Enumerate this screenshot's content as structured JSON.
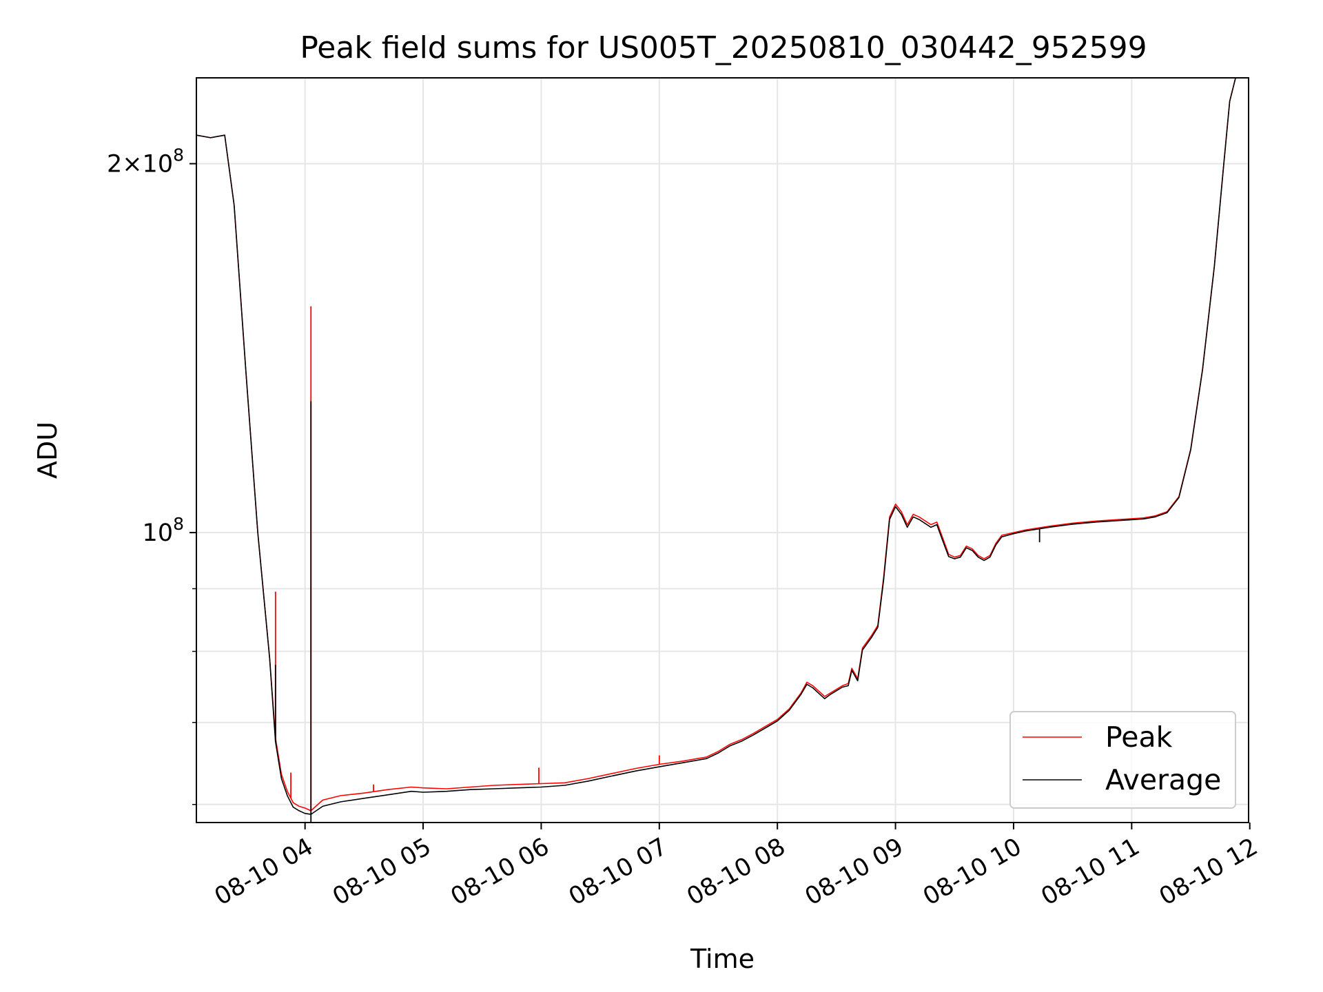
{
  "chart_data": {
    "type": "line",
    "title": "Peak field sums for US005T_20250810_030442_952599",
    "xlabel": "Time",
    "ylabel": "ADU",
    "x_range_hours": [
      3.08,
      11.99
    ],
    "y_scale": "log",
    "ylim": [
      58000000,
      235000000
    ],
    "grid": true,
    "legend_position": "bottom-right",
    "x_ticks": [
      {
        "value": 4,
        "label": "08-10 04"
      },
      {
        "value": 5,
        "label": "08-10 05"
      },
      {
        "value": 6,
        "label": "08-10 06"
      },
      {
        "value": 7,
        "label": "08-10 07"
      },
      {
        "value": 8,
        "label": "08-10 08"
      },
      {
        "value": 9,
        "label": "08-10 09"
      },
      {
        "value": 10,
        "label": "08-10 10"
      },
      {
        "value": 11,
        "label": "08-10 11"
      },
      {
        "value": 12,
        "label": "08-10 12"
      }
    ],
    "y_major_ticks": [
      {
        "value": 100000000,
        "label_base": "10",
        "label_exp": "8"
      },
      {
        "value": 200000000,
        "label_base": "2×10",
        "label_exp": "8"
      }
    ],
    "y_minor_ticks": [
      60000000,
      70000000,
      80000000,
      90000000
    ],
    "series": [
      {
        "name": "Peak",
        "color": "#ff0000",
        "points": [
          [
            3.08,
            211000000
          ],
          [
            3.2,
            210000000
          ],
          [
            3.32,
            211000000
          ],
          [
            3.4,
            185000000
          ],
          [
            3.5,
            135000000
          ],
          [
            3.6,
            100000000
          ],
          [
            3.7,
            79000000
          ],
          [
            3.75,
            68000000
          ],
          [
            3.8,
            63500000
          ],
          [
            3.85,
            61500000
          ],
          [
            3.9,
            60200000
          ],
          [
            3.95,
            59800000
          ],
          [
            4.0,
            59600000
          ],
          [
            4.05,
            59300000
          ],
          [
            4.15,
            60500000
          ],
          [
            4.3,
            61000000
          ],
          [
            4.5,
            61300000
          ],
          [
            4.7,
            61700000
          ],
          [
            4.9,
            62000000
          ],
          [
            5.0,
            61900000
          ],
          [
            5.2,
            61800000
          ],
          [
            5.4,
            62000000
          ],
          [
            5.6,
            62200000
          ],
          [
            5.8,
            62300000
          ],
          [
            6.0,
            62400000
          ],
          [
            6.2,
            62500000
          ],
          [
            6.4,
            63000000
          ],
          [
            6.6,
            63600000
          ],
          [
            6.8,
            64200000
          ],
          [
            7.0,
            64700000
          ],
          [
            7.2,
            65100000
          ],
          [
            7.4,
            65600000
          ],
          [
            7.5,
            66300000
          ],
          [
            7.6,
            67200000
          ],
          [
            7.7,
            67800000
          ],
          [
            7.8,
            68600000
          ],
          [
            7.9,
            69500000
          ],
          [
            8.0,
            70400000
          ],
          [
            8.1,
            71800000
          ],
          [
            8.2,
            74000000
          ],
          [
            8.25,
            75500000
          ],
          [
            8.3,
            75000000
          ],
          [
            8.4,
            73500000
          ],
          [
            8.45,
            74000000
          ],
          [
            8.55,
            75000000
          ],
          [
            8.6,
            75300000
          ],
          [
            8.63,
            77500000
          ],
          [
            8.68,
            76000000
          ],
          [
            8.72,
            80500000
          ],
          [
            8.8,
            82500000
          ],
          [
            8.85,
            84000000
          ],
          [
            8.9,
            92000000
          ],
          [
            8.95,
            103000000
          ],
          [
            9.0,
            105500000
          ],
          [
            9.05,
            104000000
          ],
          [
            9.1,
            101500000
          ],
          [
            9.15,
            103500000
          ],
          [
            9.2,
            103000000
          ],
          [
            9.3,
            101500000
          ],
          [
            9.35,
            102000000
          ],
          [
            9.4,
            99000000
          ],
          [
            9.45,
            96000000
          ],
          [
            9.5,
            95500000
          ],
          [
            9.55,
            95800000
          ],
          [
            9.6,
            97500000
          ],
          [
            9.65,
            97000000
          ],
          [
            9.7,
            95800000
          ],
          [
            9.75,
            95200000
          ],
          [
            9.8,
            95800000
          ],
          [
            9.85,
            98000000
          ],
          [
            9.9,
            99500000
          ],
          [
            10.0,
            100000000
          ],
          [
            10.1,
            100500000
          ],
          [
            10.3,
            101200000
          ],
          [
            10.5,
            101800000
          ],
          [
            10.7,
            102200000
          ],
          [
            10.9,
            102500000
          ],
          [
            11.1,
            102800000
          ],
          [
            11.2,
            103200000
          ],
          [
            11.3,
            104000000
          ],
          [
            11.4,
            107000000
          ],
          [
            11.5,
            117000000
          ],
          [
            11.6,
            136000000
          ],
          [
            11.7,
            165000000
          ],
          [
            11.78,
            200000000
          ],
          [
            11.83,
            225000000
          ],
          [
            11.88,
            235000000
          ]
        ],
        "spikes": [
          {
            "x": 3.75,
            "y": 89500000
          },
          {
            "x": 3.88,
            "y": 63700000
          },
          {
            "x": 4.05,
            "y": 153000000
          },
          {
            "x": 4.58,
            "y": 62300000
          },
          {
            "x": 5.98,
            "y": 64300000
          },
          {
            "x": 7.0,
            "y": 65800000
          }
        ]
      },
      {
        "name": "Average",
        "color": "#000000",
        "points": [
          [
            3.08,
            211000000
          ],
          [
            3.2,
            210000000
          ],
          [
            3.32,
            211000000
          ],
          [
            3.4,
            185000000
          ],
          [
            3.5,
            135000000
          ],
          [
            3.6,
            100000000
          ],
          [
            3.7,
            79000000
          ],
          [
            3.75,
            67500000
          ],
          [
            3.8,
            63000000
          ],
          [
            3.85,
            61000000
          ],
          [
            3.9,
            59700000
          ],
          [
            3.95,
            59300000
          ],
          [
            4.0,
            59000000
          ],
          [
            4.05,
            58900000
          ],
          [
            4.15,
            59800000
          ],
          [
            4.3,
            60300000
          ],
          [
            4.5,
            60700000
          ],
          [
            4.7,
            61100000
          ],
          [
            4.9,
            61500000
          ],
          [
            5.0,
            61400000
          ],
          [
            5.2,
            61500000
          ],
          [
            5.4,
            61700000
          ],
          [
            5.6,
            61800000
          ],
          [
            5.8,
            61900000
          ],
          [
            6.0,
            62000000
          ],
          [
            6.2,
            62200000
          ],
          [
            6.4,
            62700000
          ],
          [
            6.6,
            63300000
          ],
          [
            6.8,
            63900000
          ],
          [
            7.0,
            64400000
          ],
          [
            7.2,
            64900000
          ],
          [
            7.4,
            65400000
          ],
          [
            7.5,
            66100000
          ],
          [
            7.6,
            67000000
          ],
          [
            7.7,
            67600000
          ],
          [
            7.8,
            68400000
          ],
          [
            7.9,
            69300000
          ],
          [
            8.0,
            70200000
          ],
          [
            8.1,
            71600000
          ],
          [
            8.2,
            73800000
          ],
          [
            8.25,
            75200000
          ],
          [
            8.3,
            74700000
          ],
          [
            8.4,
            73200000
          ],
          [
            8.45,
            73800000
          ],
          [
            8.55,
            74800000
          ],
          [
            8.6,
            75000000
          ],
          [
            8.63,
            77200000
          ],
          [
            8.68,
            75700000
          ],
          [
            8.72,
            80200000
          ],
          [
            8.8,
            82200000
          ],
          [
            8.85,
            83700000
          ],
          [
            8.9,
            91500000
          ],
          [
            8.95,
            102500000
          ],
          [
            9.0,
            105000000
          ],
          [
            9.05,
            103500000
          ],
          [
            9.1,
            101000000
          ],
          [
            9.15,
            103000000
          ],
          [
            9.2,
            102500000
          ],
          [
            9.3,
            101000000
          ],
          [
            9.35,
            101500000
          ],
          [
            9.4,
            98500000
          ],
          [
            9.45,
            95600000
          ],
          [
            9.5,
            95200000
          ],
          [
            9.55,
            95500000
          ],
          [
            9.6,
            97200000
          ],
          [
            9.65,
            96700000
          ],
          [
            9.7,
            95500000
          ],
          [
            9.75,
            94900000
          ],
          [
            9.8,
            95500000
          ],
          [
            9.85,
            97700000
          ],
          [
            9.9,
            99200000
          ],
          [
            10.0,
            99800000
          ],
          [
            10.1,
            100300000
          ],
          [
            10.3,
            101000000
          ],
          [
            10.5,
            101600000
          ],
          [
            10.7,
            102000000
          ],
          [
            10.9,
            102300000
          ],
          [
            11.1,
            102600000
          ],
          [
            11.2,
            103000000
          ],
          [
            11.3,
            103800000
          ],
          [
            11.4,
            106800000
          ],
          [
            11.5,
            116800000
          ],
          [
            11.6,
            135800000
          ],
          [
            11.7,
            164800000
          ],
          [
            11.78,
            199800000
          ],
          [
            11.83,
            224800000
          ],
          [
            11.88,
            235000000
          ]
        ],
        "spikes": [
          {
            "x": 3.75,
            "y": 78000000
          },
          {
            "x": 4.05,
            "y": 128000000
          },
          {
            "x": 4.05,
            "y": 58000000
          },
          {
            "x": 10.22,
            "y": 98200000
          }
        ]
      }
    ]
  }
}
